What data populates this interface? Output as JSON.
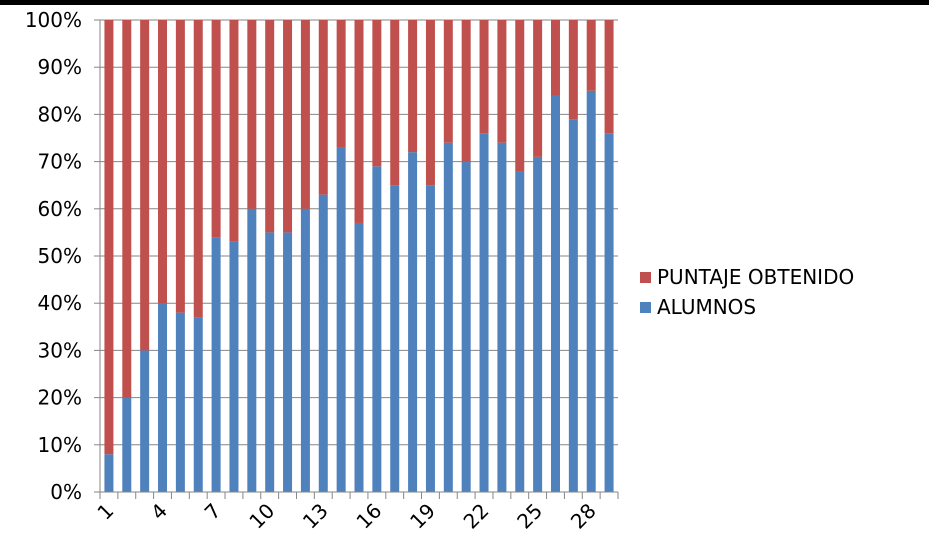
{
  "chart_data": {
    "type": "bar",
    "stacked": true,
    "percent_stacked": true,
    "x": [
      1,
      2,
      3,
      4,
      5,
      6,
      7,
      8,
      9,
      10,
      11,
      12,
      13,
      14,
      15,
      16,
      17,
      18,
      19,
      20,
      21,
      22,
      23,
      24,
      25,
      26,
      27,
      28,
      29
    ],
    "x_tick_labels": [
      "1",
      "4",
      "7",
      "10",
      "13",
      "16",
      "19",
      "22",
      "25",
      "28"
    ],
    "y_tick_labels": [
      "0%",
      "10%",
      "20%",
      "30%",
      "40%",
      "50%",
      "60%",
      "70%",
      "80%",
      "90%",
      "100%"
    ],
    "ylim": [
      0,
      100
    ],
    "series": [
      {
        "name": "ALUMNOS",
        "color": "#4f81bd",
        "values": [
          8,
          20,
          30,
          40,
          38,
          37,
          54,
          53,
          60,
          55,
          55,
          60,
          63,
          73,
          57,
          69,
          65,
          72,
          65,
          74,
          70,
          76,
          74,
          68,
          71,
          84,
          79,
          85,
          76
        ]
      },
      {
        "name": "PUNTAJE OBTENIDO",
        "color": "#c0504d",
        "values": [
          92,
          80,
          70,
          60,
          62,
          63,
          46,
          47,
          40,
          45,
          45,
          40,
          37,
          27,
          43,
          31,
          35,
          28,
          35,
          26,
          30,
          24,
          26,
          32,
          29,
          16,
          21,
          15,
          24
        ]
      }
    ],
    "legend_placement": "right",
    "legend_order": [
      "PUNTAJE OBTENIDO",
      "ALUMNOS"
    ],
    "grid": {
      "horizontal": true,
      "vertical": false
    }
  }
}
